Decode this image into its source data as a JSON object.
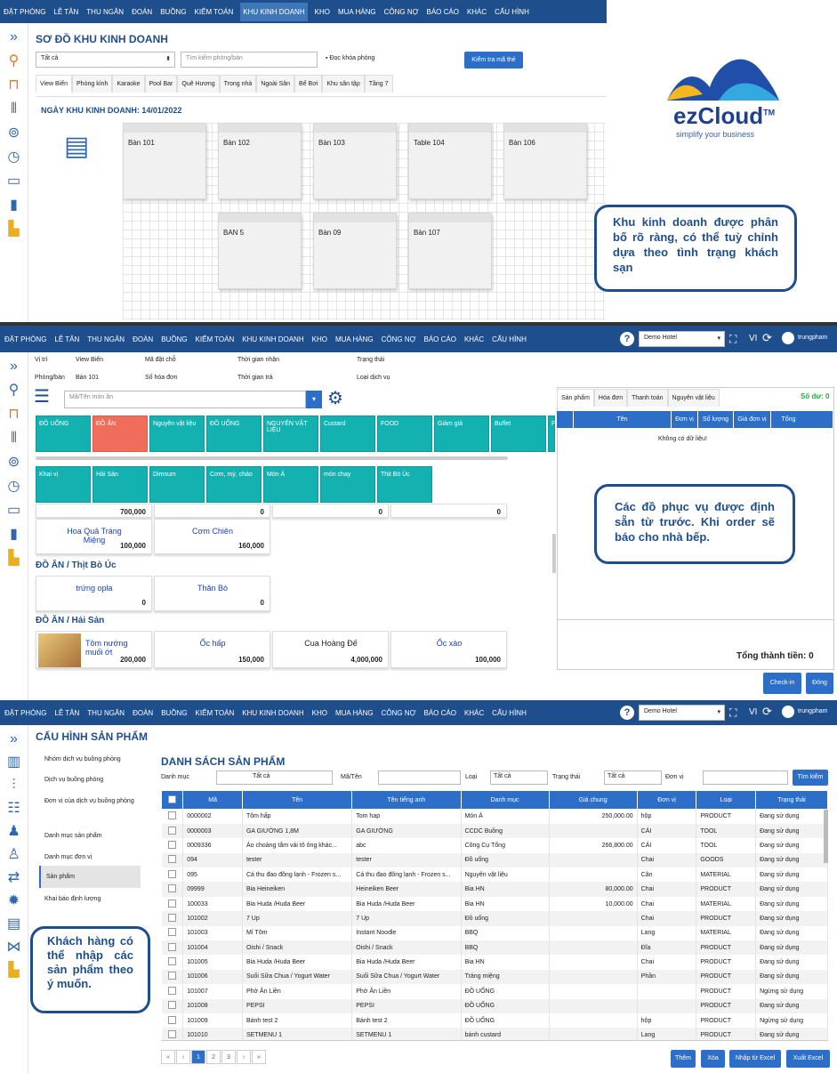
{
  "nav1": [
    "ĐẶT PHÒNG",
    "LỄ TÂN",
    "THU NGÂN",
    "ĐOÀN",
    "BUỒNG",
    "KIỂM TOÁN",
    "KHU KINH DOANH",
    "KHO",
    "MUA HÀNG",
    "CÔNG NỢ",
    "BÁO CÁO",
    "KHÁC",
    "CẤU HÌNH"
  ],
  "s1": {
    "title": "SƠ ĐỒ KHU KINH DOANH",
    "filter": "Tất cả",
    "search_ph": "Tìm kiếm phòng/bàn",
    "read_card": "Đọc khóa phòng",
    "check_card": "Kiểm tra mã thẻ",
    "tabs": [
      "View Biển",
      "Phòng kính",
      "Karaoke",
      "Pool Bar",
      "Quê Hương",
      "Trong nhà",
      "Ngoài Sân",
      "Bể Bơi",
      "Khu sân tập",
      "Tầng 7"
    ],
    "date": "NGÀY KHU KINH DOANH: 14/01/2022",
    "rooms": [
      "Bàn 101",
      "Bàn 102",
      "Bàn 103",
      "Table 104",
      "Bàn 106",
      "BAN 5",
      "Bàn 09",
      "Bàn 107"
    ],
    "logo": "ezCloud",
    "logo_tm": "TM",
    "slogan": "simplify your business",
    "callout": "Khu kinh doanh được phân bố rõ ràng, có thể tuỳ chỉnh dựa theo tình trạng khách sạn"
  },
  "s2": {
    "hotel": "Demo Hotel",
    "lang": "VI",
    "user": "trungpham",
    "info": [
      "Vị trí",
      "View Biển",
      "Mã đặt chỗ",
      "Thời gian nhận",
      "Trạng thái",
      "Phòng/bàn",
      "Bàn 101",
      "Số hóa đơn",
      "Thời gian trả",
      "Loại dịch vụ"
    ],
    "search_ph": "Mã/Tên món ăn",
    "tiles1": [
      "ĐỒ UỐNG",
      "ĐỒ ĂN",
      "Nguyên vật liệu",
      "ĐỒ UỐNG",
      "NGUYÊN VẬT LIỆU",
      "Custard",
      "FOOD",
      "Giảm giá",
      "Buffet",
      "F"
    ],
    "tiles2": [
      "Khai vị",
      "Hải Sản",
      "Dimsum",
      "Cơm, mỳ, cháo",
      "Món Á",
      "món chay",
      "Thịt Bò Úc"
    ],
    "partial": [
      "700,000",
      "0",
      "0",
      "0"
    ],
    "g1": [
      {
        "n": "Hoa Quả Tráng Miệng",
        "p": "100,000"
      },
      {
        "n": "Cơm Chiên",
        "p": "160,000"
      }
    ],
    "cat2": "ĐỒ ĂN / Thịt Bò Úc",
    "g2": [
      {
        "n": "trứng opla",
        "p": "0"
      },
      {
        "n": "Thăn Bò",
        "p": "0"
      }
    ],
    "cat3": "ĐỒ ĂN / Hải Sản",
    "g3": [
      {
        "n": "Tôm nướng muối ớt",
        "p": "200,000"
      },
      {
        "n": "Ốc hấp",
        "p": "150,000"
      },
      {
        "n": "Cua Hoàng Đế",
        "p": "4,000,000"
      },
      {
        "n": "Ốc xào",
        "p": "100,000"
      }
    ],
    "rtabs": [
      "Sản phẩm",
      "Hóa đơn",
      "Thanh toán",
      "Nguyên vật liệu"
    ],
    "balance": "Số dư: 0",
    "cols": [
      "Tên",
      "Đơn vị",
      "Số lượng",
      "Giá đơn vị",
      "Tổng"
    ],
    "empty": "Không có dữ liệu!",
    "total": "Tổng thành tiền: 0",
    "checkin": "Check-in",
    "close": "Đóng",
    "callout": "Các đồ phục vụ được định sẵn từ trước. Khi order sẽ báo cho nhà bếp."
  },
  "nav3": [
    "ĐẶT PHÒNG",
    "LỄ TÂN",
    "THU NGÂN",
    "ĐOÀN",
    "BUỒNG",
    "KIỂM TOÁN",
    "KHU KINH DOANH",
    "KHO",
    "MUA HÀNG",
    "CÔNG NỢ",
    "BÁO CÁO",
    "KHÁC",
    "CẤU HÌNH"
  ],
  "s3": {
    "title": "CẤU HÌNH SẢN PHẨM",
    "menu": [
      "Nhóm dịch vụ buồng phòng",
      "Dịch vụ buồng phòng",
      "Đơn vị của dịch vụ buồng phòng",
      "Danh mục sản phẩm",
      "Danh mục đơn vị",
      "Sản phẩm",
      "Khai báo định lượng"
    ],
    "list_title": "DANH SÁCH SẢN PHẨM",
    "f_cat": "Danh mục",
    "f_cat_v": "Tất cả",
    "f_code": "Mã/Tên",
    "f_type": "Loại",
    "f_type_v": "Tất cả",
    "f_status": "Trạng thái",
    "f_status_v": "Tất cả",
    "f_unit": "Đơn vị",
    "search": "Tìm kiếm",
    "cols": [
      "Mã",
      "Tên",
      "Tên tiếng anh",
      "Danh mục",
      "Giá chung",
      "Đơn vị",
      "Loại",
      "Trạng thái"
    ],
    "rows": [
      [
        "0000002",
        "Tôm hấp",
        "Tom hap",
        "Món Á",
        "250,000.00",
        "hộp",
        "PRODUCT",
        "Đang sử dụng"
      ],
      [
        "0000003",
        "GA GIƯỜNG 1,8M",
        "GA GIƯỜNG",
        "CCDC Buồng",
        "",
        "CÁI",
        "TOOL",
        "Đang sử dụng"
      ],
      [
        "0009336",
        "Áo choàng tắm vải tô ông khác...",
        "abc",
        "Công Cụ Tổng",
        "266,800.00",
        "CÁI",
        "TOOL",
        "Đang sử dụng"
      ],
      [
        "094",
        "tester",
        "tester",
        "Đồ uống",
        "",
        "Chai",
        "GOODS",
        "Đang sử dụng"
      ],
      [
        "095",
        "Cá thu đao đông lạnh - Frozen s...",
        "Cá thu đao đông lạnh - Frozen s...",
        "Nguyên vật liệu",
        "",
        "Cân",
        "MATERIAL",
        "Đang sử dụng"
      ],
      [
        "09999",
        "Bia Heineiken",
        "Heineiken Beer",
        "Bia HN",
        "80,000.00",
        "Chai",
        "PRODUCT",
        "Đang sử dụng"
      ],
      [
        "100033",
        "Bia Huda /Huda Beer",
        "Bia Huda /Huda Beer",
        "Bia HN",
        "10,000.00",
        "Chai",
        "MATERIAL",
        "Đang sử dụng"
      ],
      [
        "101002",
        "7 Up",
        "7 Up",
        "Đồ uống",
        "",
        "Chai",
        "PRODUCT",
        "Đang sử dụng"
      ],
      [
        "101003",
        "Mì Tôm",
        "Instant Noodle",
        "BBQ",
        "",
        "Lang",
        "MATERIAL",
        "Đang sử dụng"
      ],
      [
        "101004",
        "Oishi / Snack",
        "Oishi / Snack",
        "BBQ",
        "",
        "Đĩa",
        "PRODUCT",
        "Đang sử dụng"
      ],
      [
        "101005",
        "Bia Huda /Huda Beer",
        "Bia Huda /Huda Beer",
        "Bia HN",
        "",
        "Chai",
        "PRODUCT",
        "Đang sử dụng"
      ],
      [
        "101006",
        "Suối Sữa Chua / Yogurt Water",
        "Suối Sữa Chua / Yogurt Water",
        "Tráng miệng",
        "",
        "Phần",
        "PRODUCT",
        "Đang sử dụng"
      ],
      [
        "101007",
        "Phở Ăn Liền",
        "Phở Ăn Liền",
        "ĐỒ UỐNG",
        "",
        "",
        "PRODUCT",
        "Ngừng sử dụng"
      ],
      [
        "101008",
        "PEPSI",
        "PEPSI",
        "ĐỒ UỐNG",
        "",
        "",
        "PRODUCT",
        "Đang sử dụng"
      ],
      [
        "101009",
        "Bánh test 2",
        "Bánh test 2",
        "ĐỒ UỐNG",
        "",
        "hộp",
        "PRODUCT",
        "Ngừng sử dụng"
      ],
      [
        "101010",
        "SETMENU 1",
        "SETMENU 1",
        "bánh custard",
        "",
        "Lang",
        "PRODUCT",
        "Đang sử dụng"
      ]
    ],
    "pages": [
      "«",
      "‹",
      "1",
      "2",
      "3",
      "›",
      "»"
    ],
    "btns": [
      "Thêm",
      "Xóa",
      "Nhập từ Excel",
      "Xuất Excel"
    ],
    "callout": "Khách hàng có thể nhập các sản phẩm theo ý muốn."
  }
}
